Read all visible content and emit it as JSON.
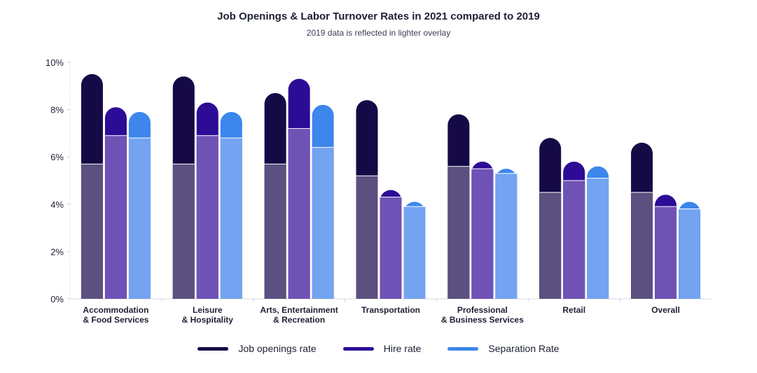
{
  "chart_data": {
    "type": "bar",
    "title": "Job Openings & Labor Turnover Rates in 2021 compared to 2019",
    "subtitle": "2019 data is reflected in lighter overlay",
    "categories": [
      [
        "Accommodation",
        "& Food Services"
      ],
      [
        "Leisure",
        "& Hospitality"
      ],
      [
        "Arts, Entertainment",
        "& Recreation"
      ],
      [
        "Transportation"
      ],
      [
        "Professional",
        "& Business Services"
      ],
      [
        "Retail"
      ],
      [
        "Overall"
      ]
    ],
    "series": [
      {
        "name": "Job openings rate",
        "color_2021": "#150a45",
        "color_2019": "#5c5080",
        "values_2021": [
          9.5,
          9.4,
          8.7,
          8.4,
          7.8,
          6.8,
          6.6
        ],
        "values_2019": [
          5.7,
          5.7,
          5.7,
          5.2,
          5.6,
          4.5,
          4.5
        ]
      },
      {
        "name": "Hire rate",
        "color_2021": "#2c0b96",
        "color_2019": "#6f52b5",
        "values_2021": [
          8.1,
          8.3,
          9.3,
          4.6,
          5.8,
          5.8,
          4.4
        ],
        "values_2019": [
          6.9,
          6.9,
          7.2,
          4.3,
          5.5,
          5.0,
          3.9
        ]
      },
      {
        "name": "Separation Rate",
        "color_2021": "#3c86ec",
        "color_2019": "#73a3f1",
        "values_2021": [
          7.9,
          7.9,
          8.2,
          4.1,
          5.5,
          5.6,
          4.1
        ],
        "values_2019": [
          6.8,
          6.8,
          6.4,
          3.9,
          5.3,
          5.1,
          3.8
        ]
      }
    ],
    "ylim": [
      0,
      10
    ],
    "yticks": [
      "0%",
      "2%",
      "4%",
      "6%",
      "8%",
      "10%"
    ],
    "ytick_values": [
      0,
      2,
      4,
      6,
      8,
      10
    ],
    "legend_position": "bottom"
  }
}
